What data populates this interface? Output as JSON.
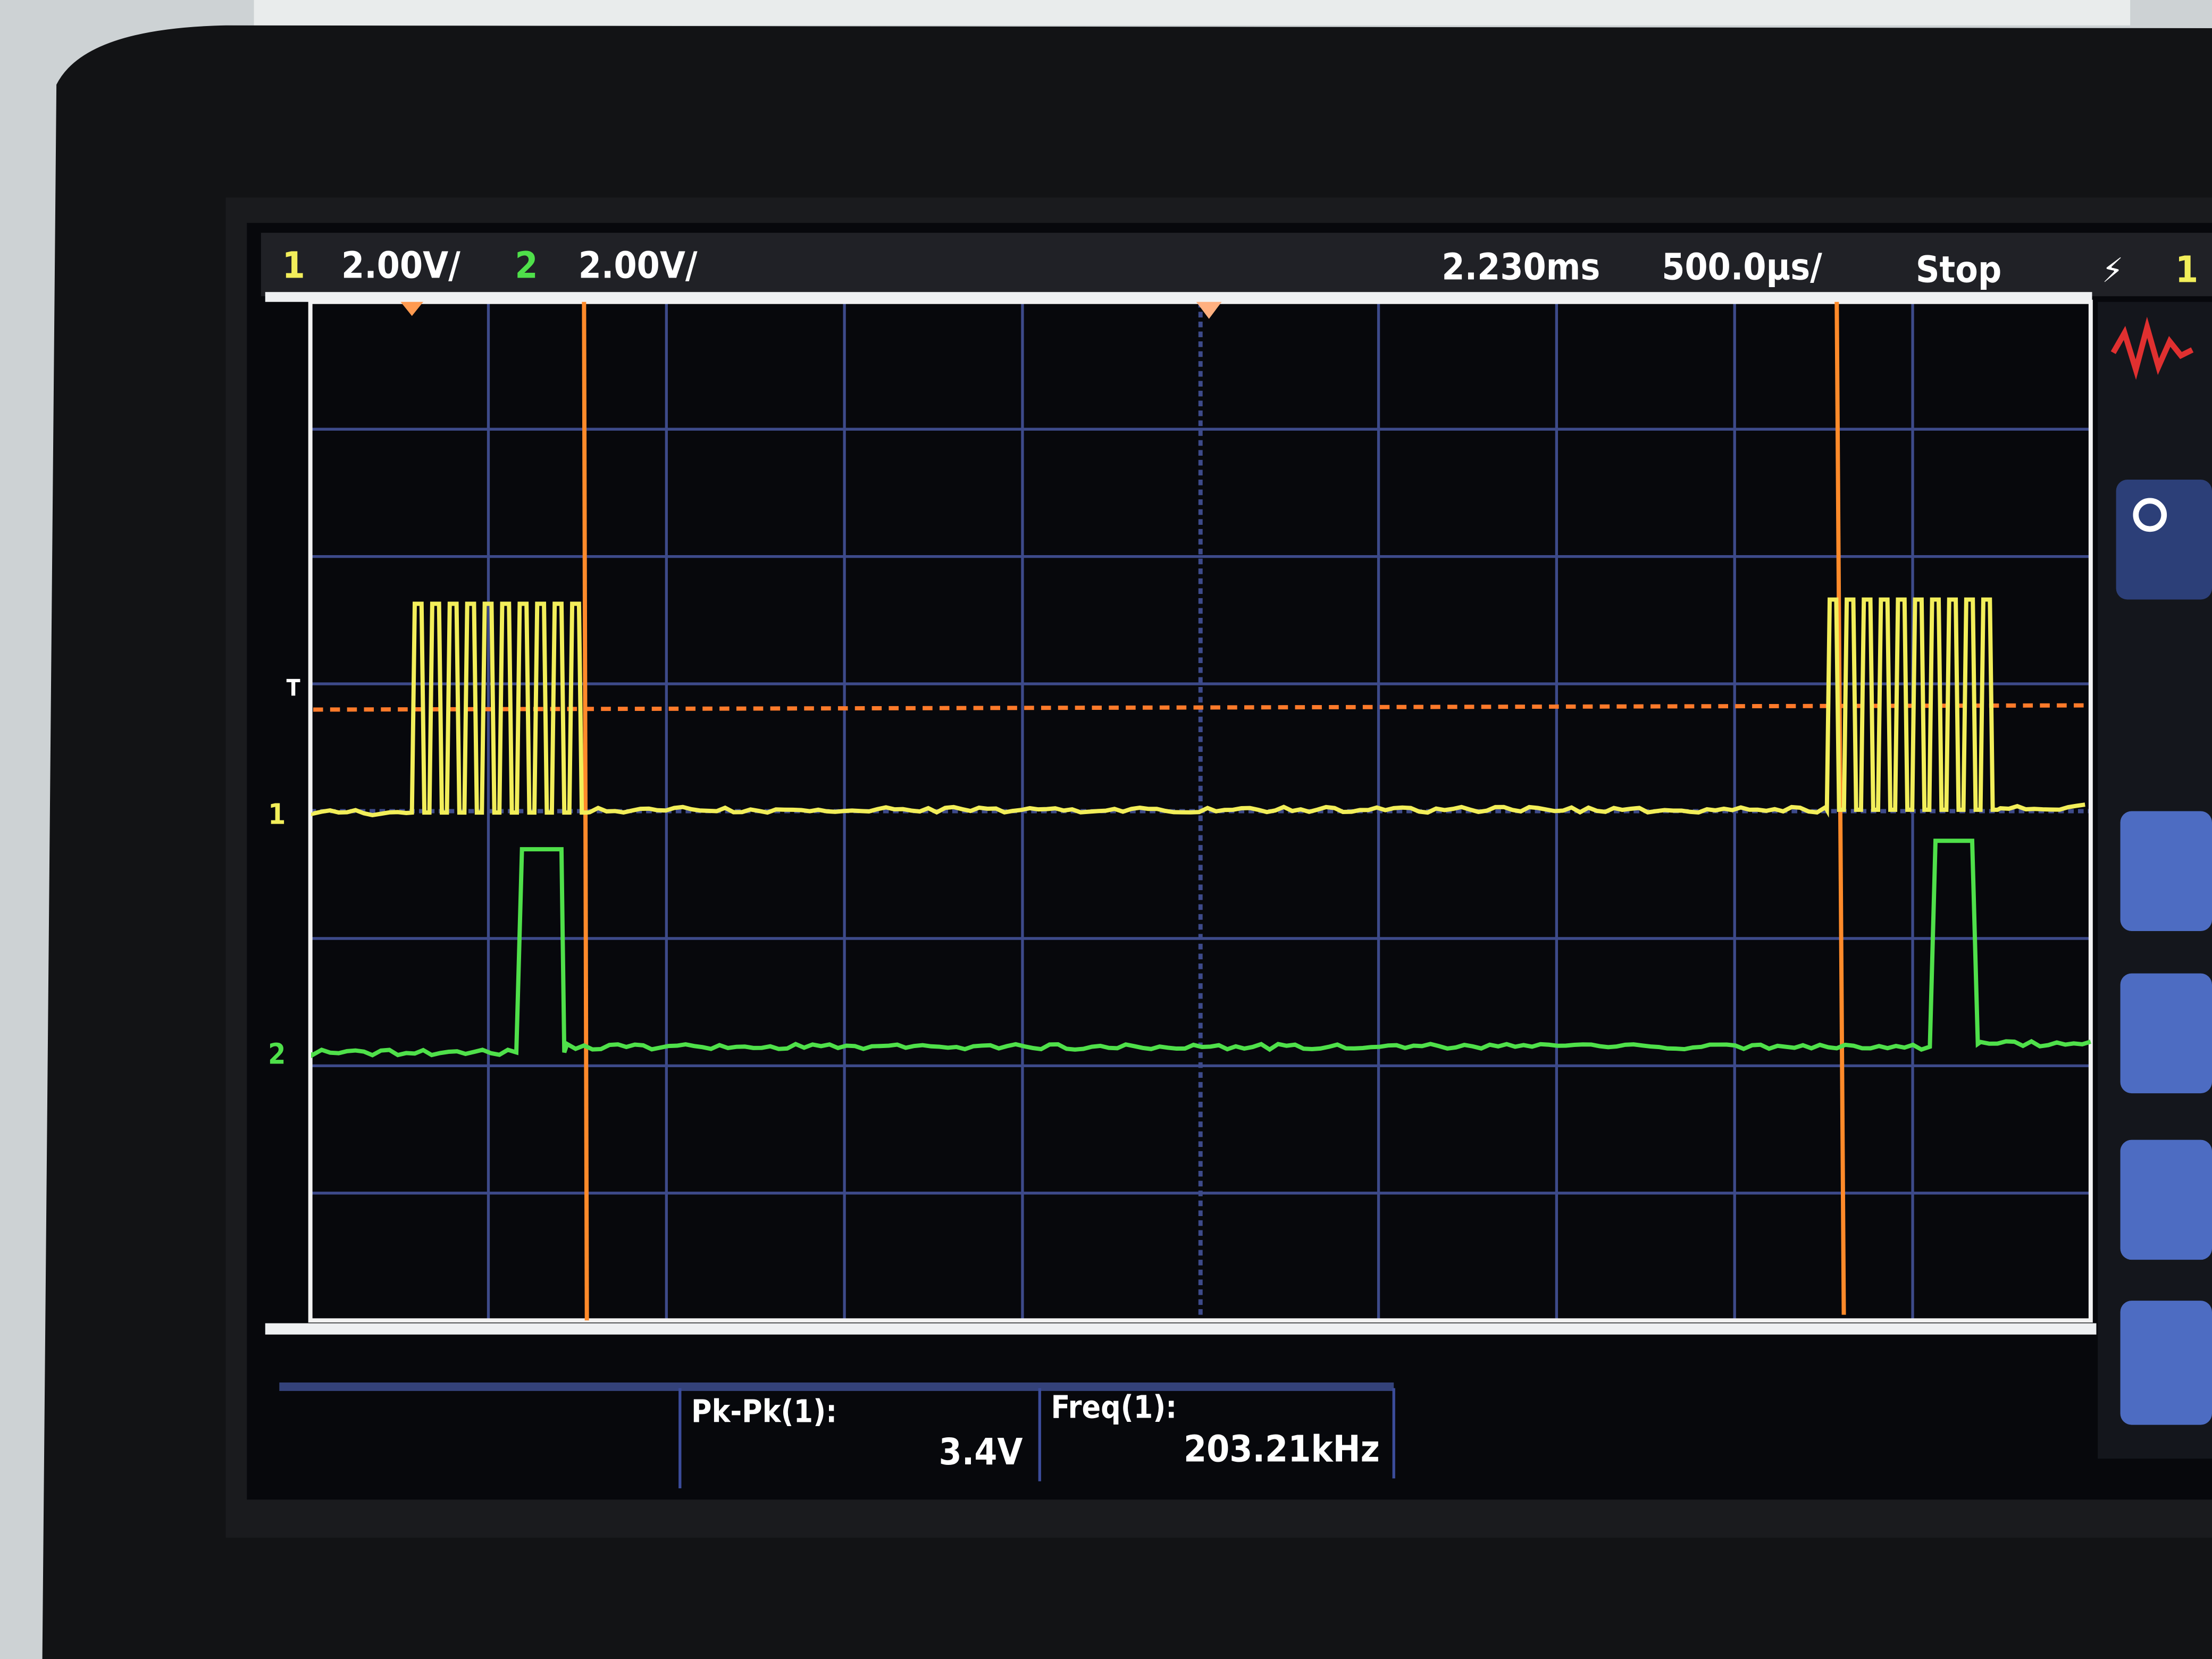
{
  "status_bar": {
    "ch1_label": "1",
    "ch1_scale": "2.00V/",
    "ch2_label": "2",
    "ch2_scale": "2.00V/",
    "delay": "2.230ms",
    "timebase": "500.0µs/",
    "run_state": "Stop",
    "trigger_icon": "trigger-edge-icon",
    "trigger_source": "1"
  },
  "markers": {
    "ch1": "1",
    "ch2": "2",
    "trigger_level": "T"
  },
  "measurements": [
    {
      "label": "Pk-Pk(1):",
      "value": "3.4V"
    },
    {
      "label": "Freq(1):",
      "value": "203.21kHz"
    }
  ],
  "colors": {
    "ch1": "#f2ee5a",
    "ch2": "#4fe04a",
    "cursor": "#ff8a2a",
    "grid": "#3d4a8a",
    "screen": "#07080c"
  }
}
